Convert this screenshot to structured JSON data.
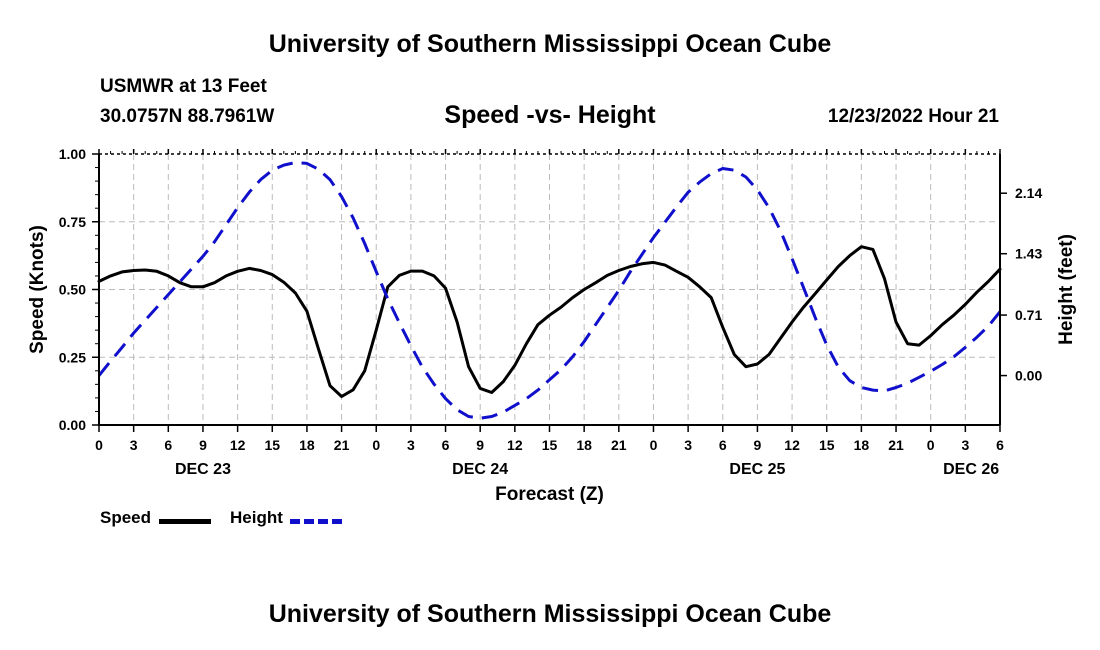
{
  "header": {
    "title": "University of Southern Mississippi Ocean Cube",
    "station": "USMWR at 13 Feet",
    "coords": "30.0757N  88.7961W",
    "subtitle": "Speed -vs- Height",
    "datetime": "12/23/2022 Hour 21"
  },
  "footer": {
    "title": "University of Southern Mississippi Ocean Cube"
  },
  "legend": {
    "speed_label": "Speed",
    "height_label": "Height"
  },
  "colors": {
    "speed": "#000000",
    "height": "#1010cc",
    "grid": "#bbbbbb"
  },
  "chart_data": {
    "type": "line",
    "title": "Speed -vs- Height",
    "xlabel": "Forecast (Z)",
    "ylabel": "Speed (Knots)",
    "ylabel_right": "Height (feet)",
    "grid": true,
    "xlim": [
      0,
      78
    ],
    "x_ticks": [
      0,
      3,
      6,
      9,
      12,
      15,
      18,
      21,
      24,
      27,
      30,
      33,
      36,
      39,
      42,
      45,
      48,
      51,
      54,
      57,
      60,
      63,
      66,
      69,
      72,
      75,
      78
    ],
    "x_tick_labels": [
      "0",
      "3",
      "6",
      "9",
      "12",
      "15",
      "18",
      "21",
      "0",
      "3",
      "6",
      "9",
      "12",
      "15",
      "18",
      "21",
      "0",
      "3",
      "6",
      "9",
      "12",
      "15",
      "18",
      "21",
      "0",
      "3",
      "6"
    ],
    "date_labels": [
      {
        "x": 9,
        "label": "DEC 23"
      },
      {
        "x": 33,
        "label": "DEC 24"
      },
      {
        "x": 57,
        "label": "DEC 25"
      },
      {
        "x": 75.5,
        "label": "DEC 26"
      }
    ],
    "y_left": {
      "lim": [
        0,
        1
      ],
      "ticks": [
        0,
        0.25,
        0.5,
        0.75,
        1.0
      ],
      "tick_labels": [
        "0.00",
        "0.25",
        "0.50",
        "0.75",
        "1.00"
      ]
    },
    "y_right": {
      "lim": [
        -0.58,
        2.6
      ],
      "ticks": [
        0,
        0.71,
        1.43,
        2.14
      ],
      "tick_labels": [
        "0.00",
        "0.71",
        "1.43",
        "2.14"
      ]
    },
    "series": [
      {
        "name": "Speed",
        "axis": "left",
        "style": "solid",
        "x": [
          0,
          1,
          2,
          3,
          4,
          5,
          6,
          7,
          8,
          9,
          10,
          11,
          12,
          13,
          14,
          15,
          16,
          17,
          18,
          19,
          20,
          21,
          22,
          23,
          24,
          25,
          26,
          27,
          28,
          29,
          30,
          31,
          32,
          33,
          34,
          35,
          36,
          37,
          38,
          39,
          40,
          41,
          42,
          43,
          44,
          45,
          46,
          47,
          48,
          49,
          50,
          51,
          52,
          53,
          54,
          55,
          56,
          57,
          58,
          59,
          60,
          61,
          62,
          63,
          64,
          65,
          66,
          67,
          68,
          69,
          70,
          71,
          72,
          73,
          74,
          75,
          76,
          77,
          78
        ],
        "values": [
          0.53,
          0.55,
          0.565,
          0.57,
          0.572,
          0.567,
          0.55,
          0.525,
          0.51,
          0.51,
          0.525,
          0.55,
          0.567,
          0.578,
          0.57,
          0.555,
          0.527,
          0.487,
          0.42,
          0.28,
          0.145,
          0.105,
          0.13,
          0.2,
          0.35,
          0.51,
          0.552,
          0.568,
          0.568,
          0.55,
          0.505,
          0.38,
          0.215,
          0.135,
          0.12,
          0.16,
          0.22,
          0.3,
          0.37,
          0.405,
          0.435,
          0.47,
          0.5,
          0.525,
          0.552,
          0.57,
          0.585,
          0.595,
          0.6,
          0.59,
          0.567,
          0.545,
          0.51,
          0.47,
          0.36,
          0.26,
          0.215,
          0.225,
          0.26,
          0.32,
          0.38,
          0.435,
          0.485,
          0.535,
          0.585,
          0.625,
          0.658,
          0.648,
          0.54,
          0.38,
          0.3,
          0.295,
          0.33,
          0.37,
          0.405,
          0.445,
          0.49,
          0.53,
          0.575
        ]
      },
      {
        "name": "Height",
        "axis": "right",
        "style": "dashed",
        "x": [
          0,
          1,
          2,
          3,
          4,
          5,
          6,
          7,
          8,
          9,
          10,
          11,
          12,
          13,
          14,
          15,
          16,
          17,
          18,
          19,
          20,
          21,
          22,
          23,
          24,
          25,
          26,
          27,
          28,
          29,
          30,
          31,
          32,
          33,
          34,
          35,
          36,
          37,
          38,
          39,
          40,
          41,
          42,
          43,
          44,
          45,
          46,
          47,
          48,
          49,
          50,
          51,
          52,
          53,
          54,
          55,
          56,
          57,
          58,
          59,
          60,
          61,
          62,
          63,
          64,
          65,
          66,
          67,
          68,
          69,
          70,
          71,
          72,
          73,
          74,
          75,
          76,
          77,
          78
        ],
        "values": [
          0.0,
          0.17,
          0.33,
          0.5,
          0.65,
          0.8,
          0.95,
          1.1,
          1.25,
          1.4,
          1.57,
          1.77,
          1.97,
          2.15,
          2.3,
          2.41,
          2.47,
          2.5,
          2.49,
          2.42,
          2.3,
          2.1,
          1.85,
          1.55,
          1.22,
          0.9,
          0.62,
          0.35,
          0.1,
          -0.1,
          -0.27,
          -0.4,
          -0.48,
          -0.5,
          -0.48,
          -0.43,
          -0.35,
          -0.27,
          -0.17,
          -0.05,
          0.07,
          0.22,
          0.4,
          0.6,
          0.8,
          1.0,
          1.22,
          1.42,
          1.62,
          1.8,
          1.98,
          2.15,
          2.27,
          2.37,
          2.43,
          2.41,
          2.33,
          2.18,
          1.97,
          1.7,
          1.37,
          1.03,
          0.68,
          0.36,
          0.1,
          -0.06,
          -0.14,
          -0.17,
          -0.18,
          -0.14,
          -0.09,
          -0.02,
          0.05,
          0.13,
          0.22,
          0.33,
          0.45,
          0.58,
          0.75
        ]
      }
    ]
  }
}
